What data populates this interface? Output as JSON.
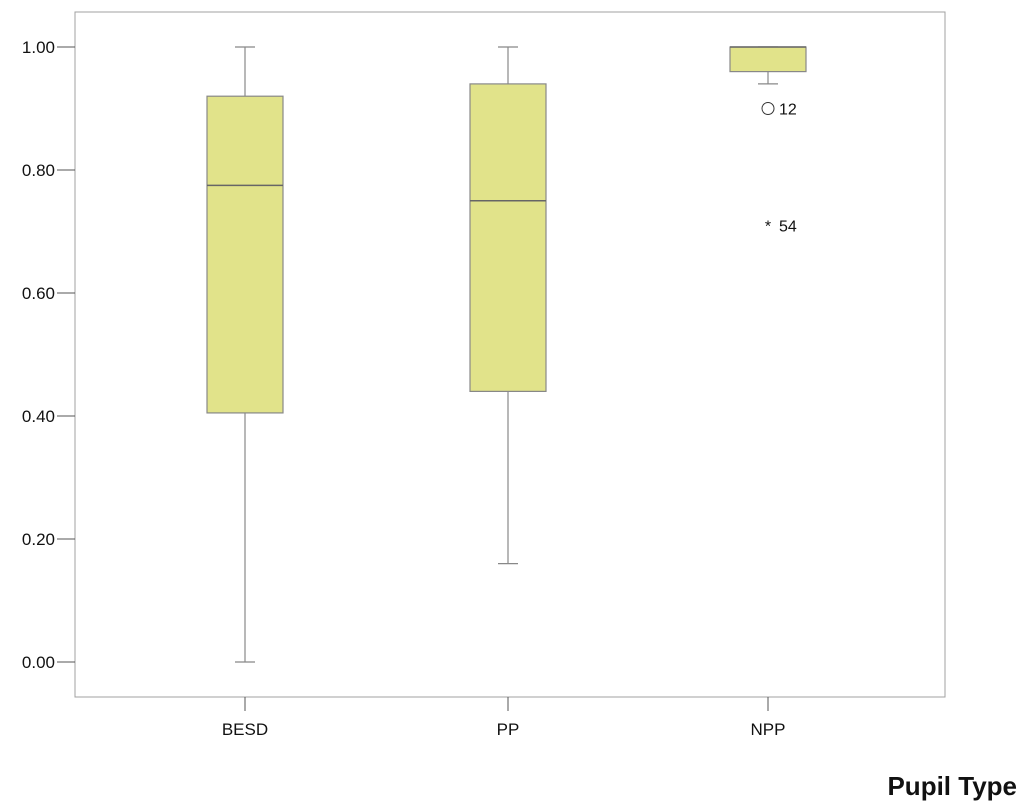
{
  "chart_data": {
    "type": "boxplot",
    "xlabel": "Pupil Type",
    "ylabel": "",
    "ylim": [
      0.0,
      1.0
    ],
    "yticks": [
      "0.00",
      "0.20",
      "0.40",
      "0.60",
      "0.80",
      "1.00"
    ],
    "grid": false,
    "box_color": "#e1e38a",
    "box_edge_color": "#888888",
    "categories": [
      "BESD",
      "PP",
      "NPP"
    ],
    "boxes": [
      {
        "category": "BESD",
        "whisker_low": 0.0,
        "q1": 0.405,
        "median": 0.775,
        "q3": 0.92,
        "whisker_high": 1.0,
        "outliers": []
      },
      {
        "category": "PP",
        "whisker_low": 0.16,
        "q1": 0.44,
        "median": 0.75,
        "q3": 0.94,
        "whisker_high": 1.0,
        "outliers": []
      },
      {
        "category": "NPP",
        "whisker_low": 0.94,
        "q1": 0.96,
        "median": 1.0,
        "q3": 1.0,
        "whisker_high": 1.0,
        "outliers": [
          {
            "value": 0.9,
            "label": "12",
            "marker": "circle"
          },
          {
            "value": 0.71,
            "label": "54",
            "marker": "star"
          }
        ]
      }
    ]
  }
}
